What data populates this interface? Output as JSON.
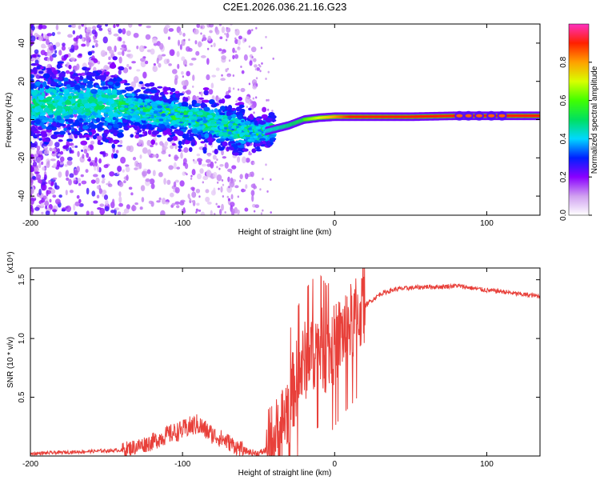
{
  "figure_title": "C2E1.2026.036.21.16.G23",
  "chart_data": [
    {
      "type": "heatmap",
      "title": "C2E1.2026.036.21.16.G23",
      "xlabel": "Height of straight line (km)",
      "ylabel": "Frequency (Hz)",
      "xlim": [
        -200,
        135
      ],
      "ylim": [
        -50,
        50
      ],
      "x_ticks": [
        -200,
        -100,
        0,
        100
      ],
      "x_tick_labels": [
        "-200",
        "-100",
        "0",
        "100"
      ],
      "y_ticks": [
        -40,
        -20,
        0,
        20,
        40
      ],
      "y_tick_labels": [
        "-40",
        "-20",
        "0",
        "20",
        "40"
      ],
      "colorbar": {
        "label": "Normalized spectral amplitude",
        "range": [
          0,
          1
        ],
        "ticks": [
          0,
          0.2,
          0.4,
          0.6,
          0.8
        ],
        "tick_labels": [
          "0.0",
          "0.2",
          "0.4",
          "0.6",
          "0.8"
        ]
      },
      "ridge": {
        "x": [
          -160,
          -140,
          -120,
          -100,
          -80,
          -60,
          -50,
          -40,
          -30,
          -20,
          -10,
          0,
          20,
          50,
          80,
          100,
          135
        ],
        "y": [
          8,
          7,
          4,
          2,
          -2,
          -6,
          -7,
          -5,
          -3,
          0,
          1,
          1.5,
          1.5,
          1.5,
          2,
          2,
          2
        ]
      }
    },
    {
      "type": "line",
      "xlabel": "Height of straight line (km)",
      "ylabel": "SNR (10 * v/v)",
      "y_scale_label": "(x10⁴)",
      "xlim": [
        -200,
        135
      ],
      "ylim": [
        0,
        1.6
      ],
      "x_ticks": [
        -200,
        -100,
        0,
        100
      ],
      "x_tick_labels": [
        "-200",
        "-100",
        "0",
        "100"
      ],
      "y_ticks": [
        0.5,
        1.0,
        1.5
      ],
      "y_tick_labels": [
        "0.5",
        "1.0",
        "1.5"
      ],
      "series": [
        {
          "name": "SNR",
          "color": "#e8403a",
          "x": [
            -200,
            -180,
            -160,
            -140,
            -130,
            -120,
            -110,
            -100,
            -95,
            -90,
            -85,
            -80,
            -75,
            -70,
            -65,
            -60,
            -55,
            -50,
            -45,
            -40,
            -35,
            -30,
            -25,
            -20,
            -15,
            -10,
            -5,
            0,
            5,
            10,
            20,
            30,
            40,
            50,
            60,
            70,
            80,
            90,
            100,
            110,
            120,
            135
          ],
          "values": [
            0.02,
            0.03,
            0.04,
            0.05,
            0.08,
            0.12,
            0.18,
            0.22,
            0.25,
            0.27,
            0.22,
            0.18,
            0.15,
            0.12,
            0.08,
            0.05,
            0.03,
            0.02,
            0.05,
            0.12,
            0.25,
            0.45,
            0.65,
            0.8,
            0.9,
            0.95,
            0.85,
            0.95,
            1.05,
            1.12,
            1.28,
            1.38,
            1.42,
            1.43,
            1.44,
            1.44,
            1.45,
            1.43,
            1.41,
            1.4,
            1.38,
            1.36
          ]
        }
      ]
    }
  ]
}
